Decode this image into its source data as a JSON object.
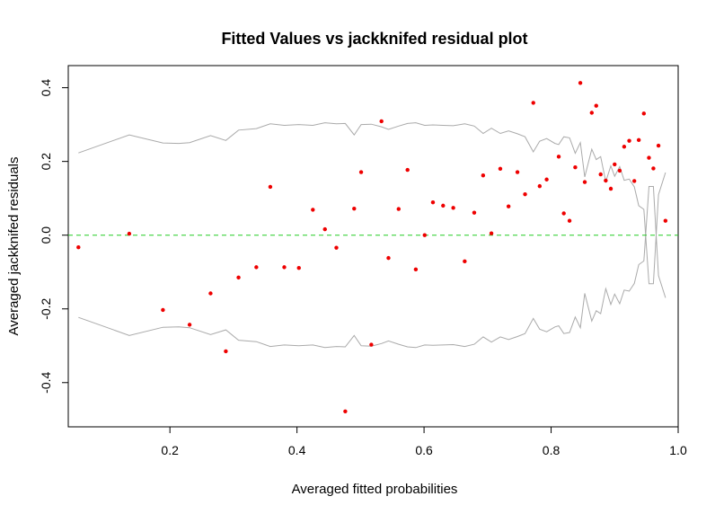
{
  "chart_data": {
    "type": "scatter",
    "title": "Fitted Values vs jackknifed residual plot",
    "xlabel": "Averaged fitted probabilities",
    "ylabel": "Averaged jackknifed residuals",
    "xlim": [
      0.04,
      1.0
    ],
    "ylim": [
      -0.52,
      0.46
    ],
    "xticks": [
      0.2,
      0.4,
      0.6,
      0.8,
      1.0
    ],
    "xtick_labels": [
      "0.2",
      "0.4",
      "0.6",
      "0.8",
      "1.0"
    ],
    "yticks": [
      -0.4,
      -0.2,
      0.0,
      0.2,
      0.4
    ],
    "ytick_labels": [
      "-0.4",
      "-0.2",
      "0.0",
      "0.2",
      "0.4"
    ],
    "grid": false,
    "colors": {
      "points": "#ee0000",
      "reference": "#22cc22",
      "envelope": "#aaaaaa"
    },
    "reference_line": {
      "y": 0,
      "style": "dashed"
    },
    "points": {
      "x": [
        0.056,
        0.136,
        0.189,
        0.231,
        0.264,
        0.288,
        0.308,
        0.336,
        0.358,
        0.38,
        0.403,
        0.425,
        0.444,
        0.462,
        0.476,
        0.49,
        0.501,
        0.517,
        0.533,
        0.544,
        0.56,
        0.574,
        0.587,
        0.601,
        0.614,
        0.63,
        0.646,
        0.664,
        0.679,
        0.693,
        0.706,
        0.72,
        0.733,
        0.747,
        0.759,
        0.772,
        0.782,
        0.793,
        0.812,
        0.82,
        0.829,
        0.838,
        0.846,
        0.853,
        0.864,
        0.871,
        0.878,
        0.886,
        0.894,
        0.9,
        0.908,
        0.915,
        0.923,
        0.931,
        0.938,
        0.946,
        0.954,
        0.961,
        0.969,
        0.98
      ],
      "y": [
        -0.033,
        0.004,
        -0.203,
        -0.243,
        -0.158,
        -0.315,
        -0.115,
        -0.087,
        0.131,
        -0.087,
        -0.089,
        0.069,
        0.016,
        -0.034,
        -0.478,
        0.072,
        0.171,
        -0.297,
        0.309,
        -0.062,
        0.071,
        0.177,
        -0.093,
        0.0,
        0.089,
        0.08,
        0.074,
        -0.071,
        0.061,
        0.162,
        0.005,
        0.18,
        0.078,
        0.171,
        0.111,
        0.359,
        0.133,
        0.151,
        0.213,
        0.059,
        0.039,
        0.184,
        0.413,
        0.144,
        0.332,
        0.351,
        0.165,
        0.148,
        0.126,
        0.192,
        0.175,
        0.24,
        0.256,
        0.147,
        0.258,
        0.33,
        0.21,
        0.181,
        0.243,
        0.039
      ]
    },
    "envelope_upper": {
      "x": [
        0.056,
        0.136,
        0.189,
        0.214,
        0.231,
        0.264,
        0.288,
        0.308,
        0.336,
        0.358,
        0.38,
        0.403,
        0.425,
        0.444,
        0.462,
        0.476,
        0.49,
        0.501,
        0.517,
        0.533,
        0.544,
        0.56,
        0.574,
        0.587,
        0.601,
        0.614,
        0.63,
        0.646,
        0.664,
        0.679,
        0.693,
        0.706,
        0.72,
        0.733,
        0.747,
        0.759,
        0.772,
        0.782,
        0.793,
        0.806,
        0.812,
        0.82,
        0.829,
        0.838,
        0.846,
        0.853,
        0.864,
        0.871,
        0.878,
        0.886,
        0.894,
        0.9,
        0.908,
        0.915,
        0.923,
        0.931,
        0.938,
        0.946,
        0.954,
        0.961,
        0.969,
        0.98
      ],
      "y": [
        0.223,
        0.272,
        0.25,
        0.249,
        0.251,
        0.27,
        0.257,
        0.285,
        0.289,
        0.302,
        0.298,
        0.3,
        0.298,
        0.305,
        0.302,
        0.303,
        0.272,
        0.3,
        0.301,
        0.294,
        0.287,
        0.296,
        0.303,
        0.305,
        0.298,
        0.299,
        0.298,
        0.297,
        0.302,
        0.296,
        0.276,
        0.29,
        0.276,
        0.283,
        0.275,
        0.267,
        0.226,
        0.255,
        0.262,
        0.249,
        0.246,
        0.267,
        0.264,
        0.222,
        0.251,
        0.158,
        0.233,
        0.205,
        0.213,
        0.145,
        0.188,
        0.16,
        0.186,
        0.149,
        0.152,
        0.131,
        0.08,
        0.07,
        -0.132,
        -0.132,
        0.11,
        0.17
      ]
    },
    "envelope_lower": {
      "x": [
        0.056,
        0.136,
        0.189,
        0.214,
        0.231,
        0.264,
        0.288,
        0.308,
        0.336,
        0.358,
        0.38,
        0.403,
        0.425,
        0.444,
        0.462,
        0.476,
        0.49,
        0.501,
        0.517,
        0.533,
        0.544,
        0.56,
        0.574,
        0.587,
        0.601,
        0.614,
        0.63,
        0.646,
        0.664,
        0.679,
        0.693,
        0.706,
        0.72,
        0.733,
        0.747,
        0.759,
        0.772,
        0.782,
        0.793,
        0.806,
        0.812,
        0.82,
        0.829,
        0.838,
        0.846,
        0.853,
        0.864,
        0.871,
        0.878,
        0.886,
        0.894,
        0.9,
        0.908,
        0.915,
        0.923,
        0.931,
        0.938,
        0.946,
        0.954,
        0.961,
        0.969,
        0.98
      ],
      "y": [
        -0.223,
        -0.272,
        -0.25,
        -0.249,
        -0.251,
        -0.27,
        -0.257,
        -0.285,
        -0.289,
        -0.302,
        -0.298,
        -0.3,
        -0.298,
        -0.305,
        -0.302,
        -0.303,
        -0.272,
        -0.3,
        -0.301,
        -0.294,
        -0.287,
        -0.296,
        -0.303,
        -0.305,
        -0.298,
        -0.299,
        -0.298,
        -0.297,
        -0.302,
        -0.296,
        -0.276,
        -0.29,
        -0.276,
        -0.283,
        -0.275,
        -0.267,
        -0.226,
        -0.255,
        -0.262,
        -0.249,
        -0.246,
        -0.267,
        -0.264,
        -0.222,
        -0.251,
        -0.158,
        -0.233,
        -0.205,
        -0.213,
        -0.145,
        -0.188,
        -0.16,
        -0.186,
        -0.149,
        -0.152,
        -0.131,
        -0.08,
        -0.07,
        0.132,
        0.132,
        -0.11,
        -0.17
      ]
    }
  }
}
